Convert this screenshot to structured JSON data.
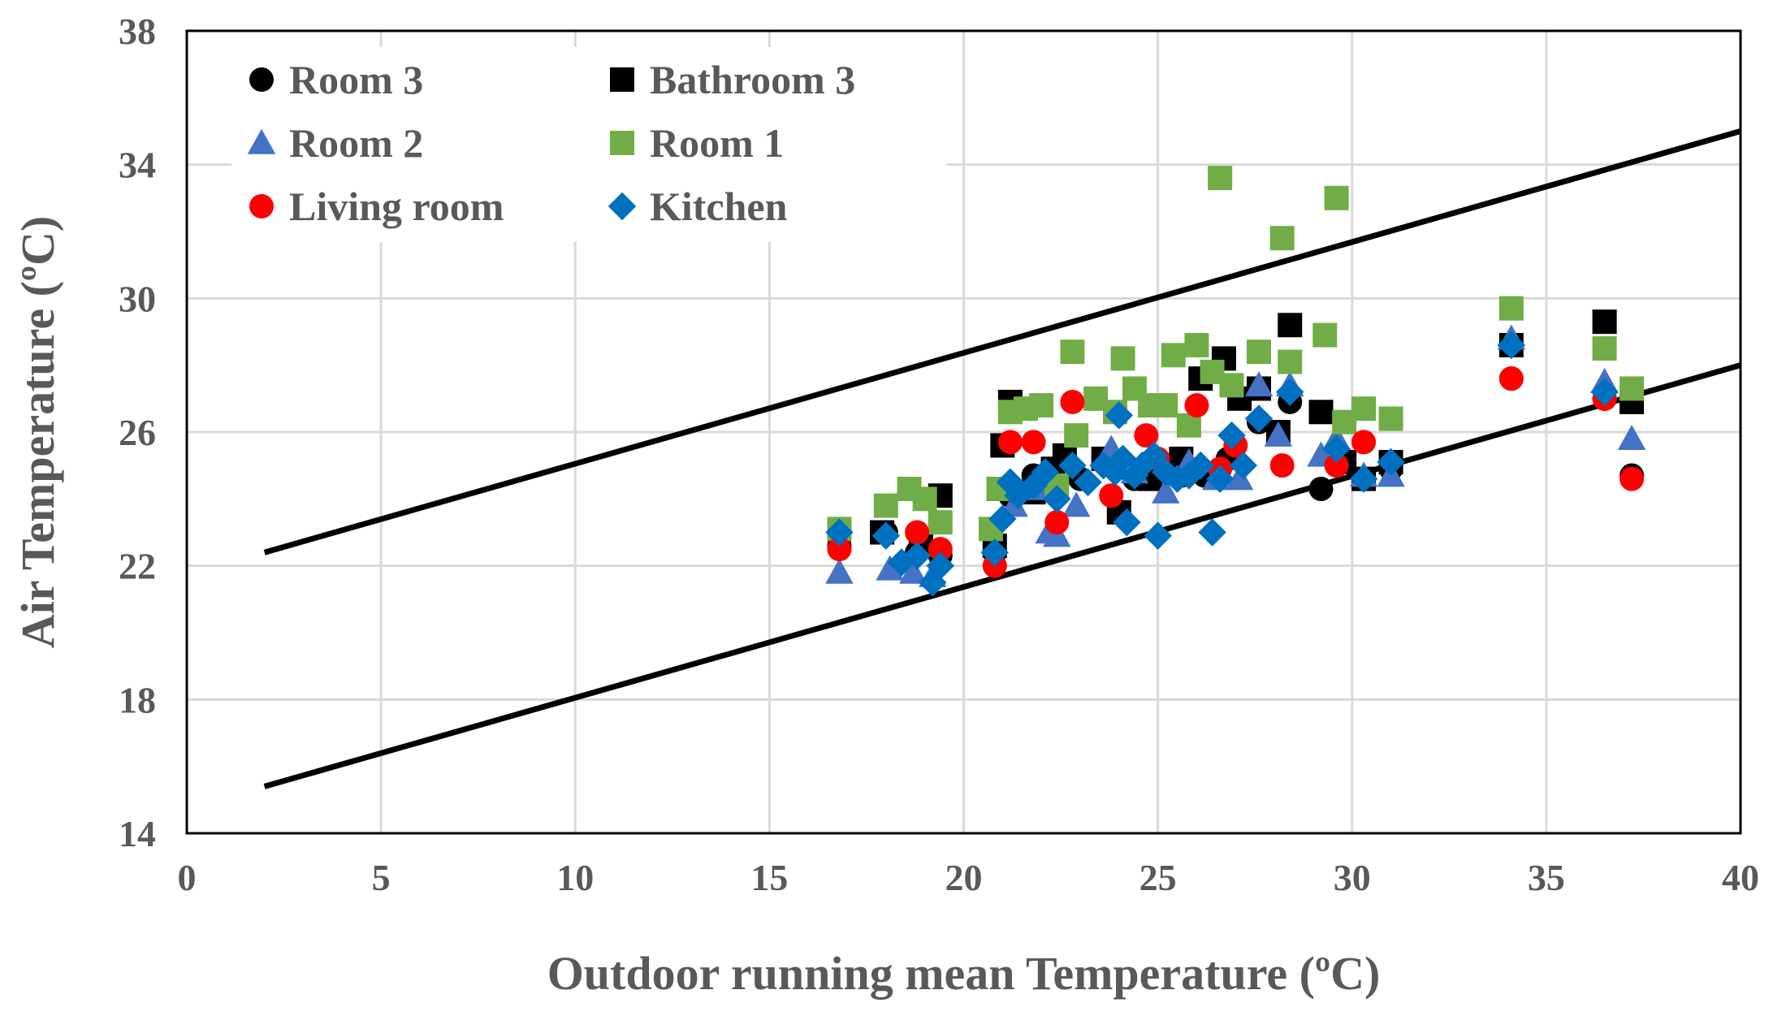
{
  "chart_data": {
    "type": "scatter",
    "title": "",
    "xlabel": "Outdoor running mean Temperature (ºC)",
    "ylabel": "Air Temperature (ºC)",
    "xlim": [
      0,
      40
    ],
    "ylim": [
      14,
      38
    ],
    "x_ticks": [
      "0",
      "5",
      "10",
      "15",
      "20",
      "25",
      "30",
      "35",
      "40"
    ],
    "y_ticks": [
      "14",
      "18",
      "22",
      "26",
      "30",
      "34",
      "38"
    ],
    "grid": true,
    "legend_position": "top-left",
    "colors": {
      "room3": "#000000",
      "bathroom3": "#000000",
      "room2": "#4472C4",
      "room1": "#70AD47",
      "living_room": "#FF0000",
      "kitchen": "#0070C0",
      "comfort_lines": "#000000",
      "grid": "#D9D9D9",
      "text": "#595959"
    },
    "comfort_lines": [
      {
        "name": "upper limit",
        "points": [
          [
            2,
            22.4
          ],
          [
            40,
            35.0
          ]
        ]
      },
      {
        "name": "lower limit",
        "points": [
          [
            2,
            15.4
          ],
          [
            40,
            28.0
          ]
        ]
      }
    ],
    "series": [
      {
        "name": "Room 3",
        "marker": "circle",
        "color": "#000000",
        "points": [
          [
            16.8,
            22.6
          ],
          [
            18.0,
            23.0
          ],
          [
            18.8,
            22.4
          ],
          [
            19.4,
            22.3
          ],
          [
            20.8,
            22.4
          ],
          [
            21.2,
            24.1
          ],
          [
            21.8,
            24.7
          ],
          [
            22.4,
            24.4
          ],
          [
            23.0,
            24.6
          ],
          [
            23.8,
            25.0
          ],
          [
            24.4,
            24.6
          ],
          [
            25.0,
            24.8
          ],
          [
            25.6,
            24.7
          ],
          [
            26.2,
            24.7
          ],
          [
            26.8,
            25.2
          ],
          [
            27.6,
            26.3
          ],
          [
            28.4,
            26.9
          ],
          [
            29.2,
            24.3
          ],
          [
            30.3,
            24.6
          ],
          [
            31.0,
            24.9
          ],
          [
            34.1,
            27.6
          ],
          [
            36.5,
            27.0
          ],
          [
            37.2,
            24.7
          ]
        ]
      },
      {
        "name": "Bathroom 3",
        "marker": "square",
        "color": "#000000",
        "points": [
          [
            17.9,
            23.0
          ],
          [
            18.9,
            22.6
          ],
          [
            19.4,
            24.1
          ],
          [
            20.8,
            22.6
          ],
          [
            21.0,
            25.6
          ],
          [
            21.2,
            26.9
          ],
          [
            21.8,
            24.2
          ],
          [
            22.3,
            24.9
          ],
          [
            22.6,
            25.3
          ],
          [
            23.6,
            25.2
          ],
          [
            24.0,
            23.6
          ],
          [
            24.8,
            24.6
          ],
          [
            25.6,
            25.2
          ],
          [
            26.1,
            27.6
          ],
          [
            26.7,
            28.2
          ],
          [
            27.1,
            27.0
          ],
          [
            27.6,
            27.3
          ],
          [
            28.1,
            26.0
          ],
          [
            28.4,
            29.2
          ],
          [
            29.2,
            26.6
          ],
          [
            29.8,
            25.1
          ],
          [
            30.3,
            24.6
          ],
          [
            31.0,
            25.1
          ],
          [
            34.1,
            28.6
          ],
          [
            36.5,
            29.3
          ],
          [
            37.2,
            26.9
          ]
        ]
      },
      {
        "name": "Room 2",
        "marker": "triangle",
        "color": "#4472C4",
        "points": [
          [
            16.8,
            21.8
          ],
          [
            18.1,
            21.9
          ],
          [
            18.7,
            21.8
          ],
          [
            19.2,
            21.7
          ],
          [
            21.3,
            23.8
          ],
          [
            21.9,
            24.3
          ],
          [
            22.2,
            23.0
          ],
          [
            22.4,
            22.9
          ],
          [
            22.9,
            23.8
          ],
          [
            23.8,
            25.5
          ],
          [
            24.4,
            24.8
          ],
          [
            25.2,
            24.2
          ],
          [
            25.8,
            25.1
          ],
          [
            26.5,
            24.6
          ],
          [
            27.1,
            24.6
          ],
          [
            27.6,
            27.4
          ],
          [
            28.1,
            25.9
          ],
          [
            28.4,
            27.4
          ],
          [
            29.2,
            25.3
          ],
          [
            29.6,
            25.8
          ],
          [
            30.3,
            24.7
          ],
          [
            31.0,
            24.7
          ],
          [
            34.1,
            28.8
          ],
          [
            36.5,
            27.5
          ],
          [
            37.2,
            25.8
          ]
        ]
      },
      {
        "name": "Room 1",
        "marker": "square",
        "color": "#70AD47",
        "points": [
          [
            16.8,
            23.1
          ],
          [
            18.0,
            23.8
          ],
          [
            18.6,
            24.3
          ],
          [
            19.0,
            24.0
          ],
          [
            19.4,
            23.3
          ],
          [
            20.7,
            23.1
          ],
          [
            20.9,
            24.3
          ],
          [
            21.2,
            26.6
          ],
          [
            21.6,
            26.7
          ],
          [
            22.0,
            26.8
          ],
          [
            22.4,
            24.4
          ],
          [
            22.8,
            28.4
          ],
          [
            22.9,
            25.9
          ],
          [
            23.4,
            27.0
          ],
          [
            23.9,
            26.6
          ],
          [
            24.1,
            28.2
          ],
          [
            24.4,
            27.3
          ],
          [
            24.8,
            26.8
          ],
          [
            25.2,
            26.8
          ],
          [
            25.4,
            28.3
          ],
          [
            25.8,
            26.2
          ],
          [
            26.0,
            28.6
          ],
          [
            26.4,
            27.8
          ],
          [
            26.6,
            33.6
          ],
          [
            26.9,
            27.4
          ],
          [
            27.6,
            28.4
          ],
          [
            28.2,
            31.8
          ],
          [
            28.4,
            28.1
          ],
          [
            29.3,
            28.9
          ],
          [
            29.6,
            33.0
          ],
          [
            29.8,
            26.3
          ],
          [
            30.3,
            26.7
          ],
          [
            31.0,
            26.4
          ],
          [
            34.1,
            29.7
          ],
          [
            36.5,
            28.5
          ],
          [
            37.2,
            27.3
          ]
        ]
      },
      {
        "name": "Living room",
        "marker": "circle",
        "color": "#FF0000",
        "points": [
          [
            16.8,
            22.5
          ],
          [
            18.8,
            23.0
          ],
          [
            19.4,
            22.5
          ],
          [
            20.8,
            22.0
          ],
          [
            21.2,
            25.7
          ],
          [
            21.8,
            25.7
          ],
          [
            22.4,
            23.3
          ],
          [
            22.8,
            26.9
          ],
          [
            23.8,
            24.1
          ],
          [
            24.7,
            25.9
          ],
          [
            25.0,
            25.2
          ],
          [
            26.0,
            26.8
          ],
          [
            26.6,
            24.9
          ],
          [
            27.0,
            25.6
          ],
          [
            28.2,
            25.0
          ],
          [
            29.6,
            25.0
          ],
          [
            30.3,
            25.7
          ],
          [
            34.1,
            27.6
          ],
          [
            36.5,
            27.0
          ],
          [
            37.2,
            24.6
          ]
        ]
      },
      {
        "name": "Kitchen",
        "marker": "diamond",
        "color": "#0070C0",
        "points": [
          [
            16.8,
            23.0
          ],
          [
            18.0,
            22.9
          ],
          [
            18.4,
            22.1
          ],
          [
            18.8,
            22.3
          ],
          [
            19.2,
            21.5
          ],
          [
            19.4,
            22.0
          ],
          [
            20.8,
            22.4
          ],
          [
            21.0,
            23.4
          ],
          [
            21.2,
            24.5
          ],
          [
            21.4,
            24.1
          ],
          [
            21.8,
            24.4
          ],
          [
            22.1,
            24.8
          ],
          [
            22.4,
            24.0
          ],
          [
            22.8,
            25.0
          ],
          [
            23.2,
            24.5
          ],
          [
            23.6,
            25.0
          ],
          [
            23.9,
            24.8
          ],
          [
            24.0,
            26.5
          ],
          [
            24.1,
            25.2
          ],
          [
            24.2,
            23.3
          ],
          [
            24.4,
            24.7
          ],
          [
            24.6,
            25.0
          ],
          [
            24.9,
            25.3
          ],
          [
            25.0,
            22.9
          ],
          [
            25.2,
            24.8
          ],
          [
            25.5,
            24.6
          ],
          [
            25.8,
            24.7
          ],
          [
            26.1,
            25.0
          ],
          [
            26.4,
            23.0
          ],
          [
            26.6,
            24.6
          ],
          [
            26.9,
            25.9
          ],
          [
            27.2,
            25.0
          ],
          [
            27.6,
            26.4
          ],
          [
            28.4,
            27.2
          ],
          [
            29.6,
            25.5
          ],
          [
            30.3,
            24.6
          ],
          [
            31.0,
            25.1
          ],
          [
            34.1,
            28.6
          ],
          [
            36.5,
            27.2
          ]
        ]
      }
    ]
  }
}
